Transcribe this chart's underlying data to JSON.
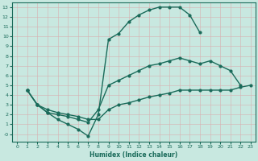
{
  "xlabel": "Humidex (Indice chaleur)",
  "background_color": "#c8e8e0",
  "line_color": "#1a6b5a",
  "grid_color": "#b0d4cc",
  "xlim_min": -0.5,
  "xlim_max": 23.5,
  "ylim_min": -0.8,
  "ylim_max": 13.5,
  "yticks": [
    0,
    1,
    2,
    3,
    4,
    5,
    6,
    7,
    8,
    9,
    10,
    11,
    12,
    13
  ],
  "ytick_labels": [
    "-0",
    "1",
    "2",
    "3",
    "4",
    "5",
    "6",
    "7",
    "8",
    "9",
    "10",
    "11",
    "12",
    "13"
  ],
  "xticks": [
    0,
    1,
    2,
    3,
    4,
    5,
    6,
    7,
    8,
    9,
    10,
    11,
    12,
    13,
    14,
    15,
    16,
    17,
    18,
    19,
    20,
    21,
    22,
    23
  ],
  "series": [
    {
      "x": [
        1,
        2,
        3,
        4,
        5,
        6,
        7,
        8,
        9,
        10,
        11,
        12,
        13,
        14,
        15,
        16,
        17,
        18
      ],
      "y": [
        4.5,
        3.0,
        2.2,
        1.5,
        1.0,
        0.5,
        -0.2,
        2.0,
        9.7,
        10.3,
        11.5,
        12.2,
        12.7,
        13.0,
        13.0,
        13.0,
        12.2,
        10.4
      ]
    },
    {
      "x": [
        1,
        2,
        3,
        4,
        5,
        6,
        7,
        8,
        9,
        10,
        11,
        12,
        13,
        14,
        15,
        16,
        17,
        18,
        19,
        20,
        21,
        22
      ],
      "y": [
        4.5,
        3.0,
        2.2,
        2.0,
        1.8,
        1.5,
        1.2,
        2.5,
        5.0,
        5.5,
        6.0,
        6.5,
        7.0,
        7.2,
        7.5,
        7.8,
        7.5,
        7.2,
        7.5,
        7.0,
        6.5,
        5.0
      ]
    },
    {
      "x": [
        1,
        2,
        3,
        4,
        5,
        6,
        7,
        8,
        9,
        10,
        11,
        12,
        13,
        14,
        15,
        16,
        17,
        18,
        19,
        20,
        21,
        22,
        23
      ],
      "y": [
        4.5,
        3.0,
        2.5,
        2.2,
        2.0,
        1.8,
        1.5,
        1.5,
        2.5,
        3.0,
        3.2,
        3.5,
        3.8,
        4.0,
        4.2,
        4.5,
        4.5,
        4.5,
        4.5,
        4.5,
        4.5,
        4.8,
        5.0
      ]
    }
  ],
  "markersize": 2.0,
  "linewidth": 1.0,
  "tick_fontsize": 4.5,
  "xlabel_fontsize": 5.5
}
